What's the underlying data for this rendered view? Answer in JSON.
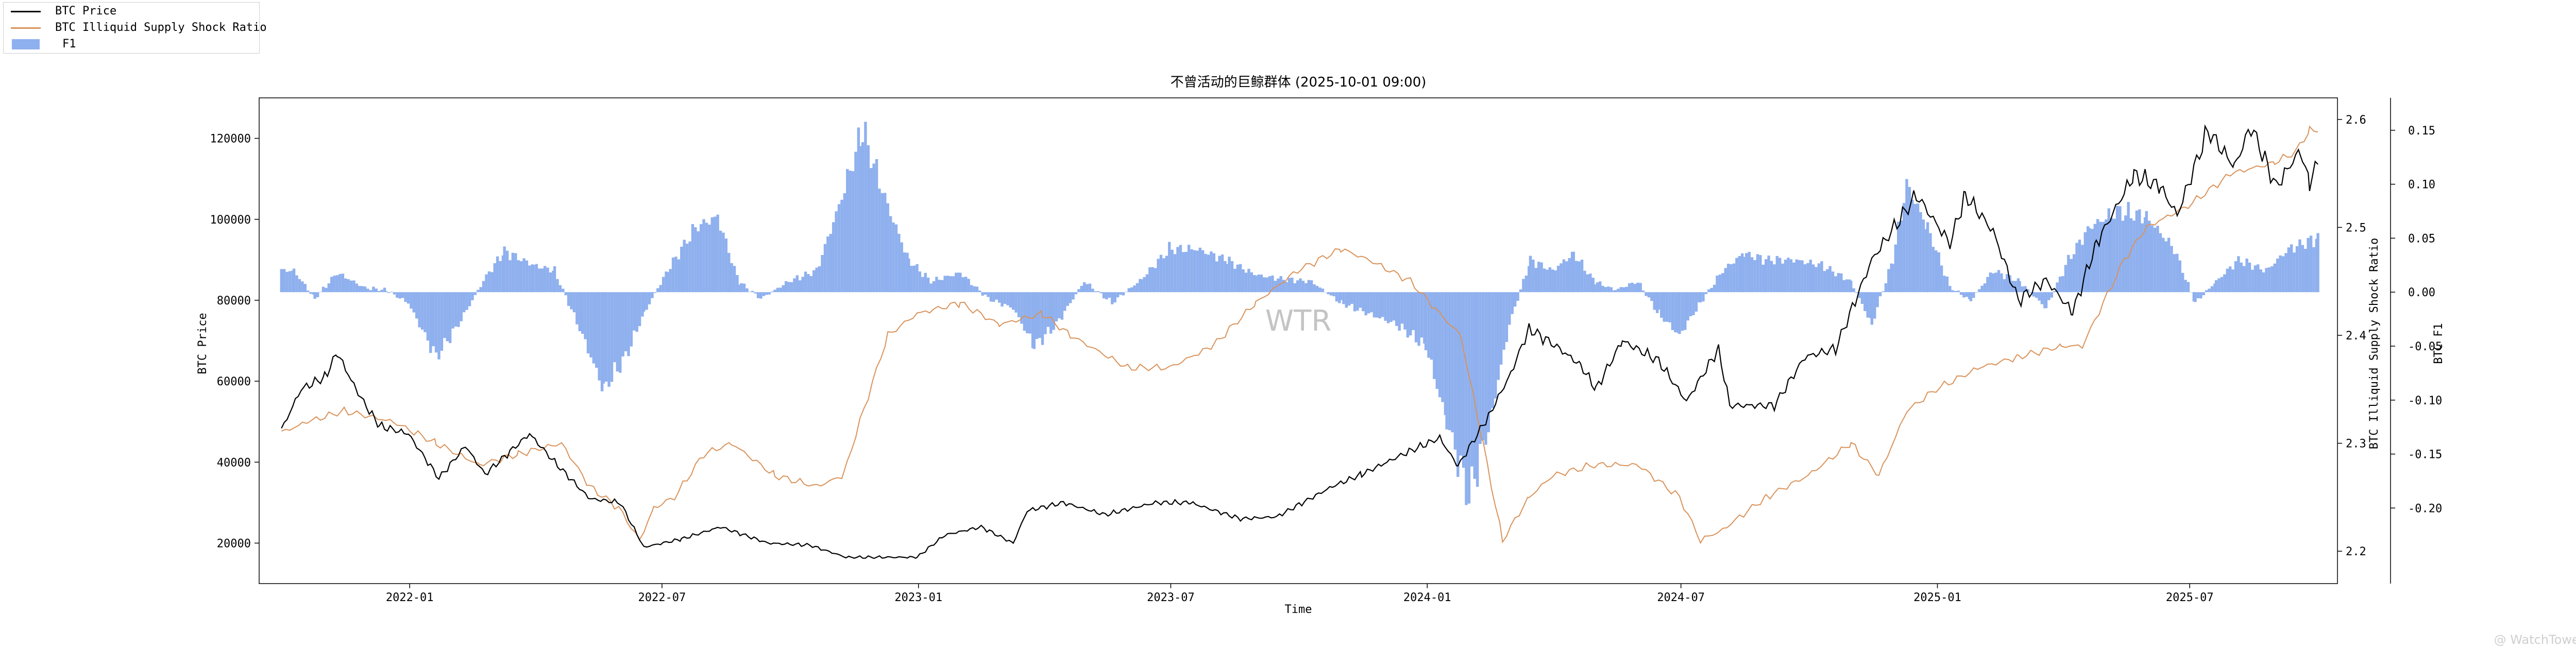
{
  "legend": {
    "price_label": "BTC Price",
    "ratio_label": "BTC Illiquid Supply Shock Ratio",
    "f1_label": "F1"
  },
  "watermark": {
    "center": "WTR",
    "brand": "@ WatchTowerr"
  },
  "colors": {
    "price": "#000000",
    "ratio": "#d9925a",
    "f1": "#8fb0ee"
  },
  "chart_data": {
    "type": "line",
    "title": "不曾活动的巨鲸群体 (2025-10-01 09:00)",
    "xlabel": "Time",
    "x_ticks": [
      "2022-01",
      "2022-07",
      "2023-01",
      "2023-07",
      "2024-01",
      "2024-07",
      "2025-01",
      "2025-07"
    ],
    "x_range": [
      "2021-09-15",
      "2025-10-15"
    ],
    "axes": {
      "price": {
        "label": "BTC Price",
        "range": [
          10000,
          130000
        ],
        "ticks": [
          "20000",
          "40000",
          "60000",
          "80000",
          "100000",
          "120000"
        ]
      },
      "ratio": {
        "label": "BTC Illiquid Supply Shock Ratio",
        "range": [
          2.17,
          2.62
        ],
        "ticks": [
          "2.2",
          "2.3",
          "2.4",
          "2.5",
          "2.6"
        ]
      },
      "f1": {
        "label": "BTC F1",
        "range": [
          -0.27,
          0.18
        ],
        "ticks": [
          "-0.20",
          "-0.15",
          "-0.10",
          "-0.05",
          "0.00",
          "0.05",
          "0.10",
          "0.15"
        ]
      }
    },
    "series": [
      {
        "name": "BTC Price",
        "axis": "price",
        "style": "line",
        "points": [
          [
            "2021-10-01",
            48000
          ],
          [
            "2021-10-15",
            58000
          ],
          [
            "2021-11-01",
            61000
          ],
          [
            "2021-11-10",
            67000
          ],
          [
            "2021-11-25",
            57000
          ],
          [
            "2021-12-10",
            49000
          ],
          [
            "2021-12-31",
            47000
          ],
          [
            "2022-01-22",
            36000
          ],
          [
            "2022-02-10",
            44000
          ],
          [
            "2022-02-24",
            37000
          ],
          [
            "2022-03-28",
            47000
          ],
          [
            "2022-04-15",
            40000
          ],
          [
            "2022-05-10",
            31000
          ],
          [
            "2022-06-01",
            30000
          ],
          [
            "2022-06-18",
            19000
          ],
          [
            "2022-07-15",
            21000
          ],
          [
            "2022-08-12",
            24000
          ],
          [
            "2022-09-15",
            20000
          ],
          [
            "2022-10-15",
            19500
          ],
          [
            "2022-11-10",
            16500
          ],
          [
            "2022-12-31",
            16500
          ],
          [
            "2023-01-20",
            22000
          ],
          [
            "2023-02-15",
            24000
          ],
          [
            "2023-03-10",
            20000
          ],
          [
            "2023-03-20",
            28000
          ],
          [
            "2023-04-15",
            30000
          ],
          [
            "2023-05-15",
            27000
          ],
          [
            "2023-06-20",
            30000
          ],
          [
            "2023-07-15",
            30000
          ],
          [
            "2023-08-20",
            26000
          ],
          [
            "2023-09-15",
            26500
          ],
          [
            "2023-10-25",
            34000
          ],
          [
            "2023-11-15",
            37000
          ],
          [
            "2023-12-15",
            42000
          ],
          [
            "2024-01-10",
            46000
          ],
          [
            "2024-01-23",
            39000
          ],
          [
            "2024-02-15",
            52000
          ],
          [
            "2024-03-01",
            62000
          ],
          [
            "2024-03-14",
            73000
          ],
          [
            "2024-04-01",
            69000
          ],
          [
            "2024-04-20",
            64000
          ],
          [
            "2024-05-01",
            58000
          ],
          [
            "2024-05-20",
            70000
          ],
          [
            "2024-06-15",
            65000
          ],
          [
            "2024-07-05",
            55000
          ],
          [
            "2024-07-28",
            68000
          ],
          [
            "2024-08-05",
            54000
          ],
          [
            "2024-09-06",
            54000
          ],
          [
            "2024-09-28",
            66000
          ],
          [
            "2024-10-20",
            68000
          ],
          [
            "2024-11-15",
            90000
          ],
          [
            "2024-12-05",
            100000
          ],
          [
            "2024-12-17",
            106000
          ],
          [
            "2025-01-10",
            94000
          ],
          [
            "2025-01-21",
            106000
          ],
          [
            "2025-02-10",
            97000
          ],
          [
            "2025-02-28",
            80000
          ],
          [
            "2025-03-20",
            85000
          ],
          [
            "2025-04-08",
            77000
          ],
          [
            "2025-04-25",
            94000
          ],
          [
            "2025-05-22",
            111000
          ],
          [
            "2025-06-10",
            108000
          ],
          [
            "2025-06-22",
            101000
          ],
          [
            "2025-07-14",
            122000
          ],
          [
            "2025-08-02",
            113000
          ],
          [
            "2025-08-14",
            123000
          ],
          [
            "2025-09-01",
            108000
          ],
          [
            "2025-09-18",
            117000
          ],
          [
            "2025-09-25",
            109000
          ],
          [
            "2025-10-01",
            114000
          ]
        ]
      },
      {
        "name": "BTC Illiquid Supply Shock Ratio",
        "axis": "ratio",
        "style": "line",
        "points": [
          [
            "2021-10-01",
            2.31
          ],
          [
            "2021-10-20",
            2.32
          ],
          [
            "2021-11-15",
            2.33
          ],
          [
            "2021-12-20",
            2.32
          ],
          [
            "2022-01-20",
            2.3
          ],
          [
            "2022-02-20",
            2.28
          ],
          [
            "2022-03-20",
            2.29
          ],
          [
            "2022-04-20",
            2.3
          ],
          [
            "2022-05-10",
            2.26
          ],
          [
            "2022-05-31",
            2.24
          ],
          [
            "2022-06-15",
            2.21
          ],
          [
            "2022-06-25",
            2.24
          ],
          [
            "2022-07-10",
            2.25
          ],
          [
            "2022-07-31",
            2.29
          ],
          [
            "2022-08-20",
            2.3
          ],
          [
            "2022-09-20",
            2.27
          ],
          [
            "2022-10-20",
            2.26
          ],
          [
            "2022-11-08",
            2.27
          ],
          [
            "2022-11-20",
            2.32
          ],
          [
            "2022-12-10",
            2.4
          ],
          [
            "2022-12-31",
            2.42
          ],
          [
            "2023-01-31",
            2.43
          ],
          [
            "2023-02-28",
            2.41
          ],
          [
            "2023-03-31",
            2.42
          ],
          [
            "2023-04-20",
            2.4
          ],
          [
            "2023-05-31",
            2.37
          ],
          [
            "2023-06-30",
            2.37
          ],
          [
            "2023-07-31",
            2.39
          ],
          [
            "2023-08-31",
            2.43
          ],
          [
            "2023-09-30",
            2.46
          ],
          [
            "2023-10-31",
            2.48
          ],
          [
            "2023-11-20",
            2.47
          ],
          [
            "2023-12-20",
            2.45
          ],
          [
            "2024-01-10",
            2.42
          ],
          [
            "2024-01-25",
            2.4
          ],
          [
            "2024-02-10",
            2.3
          ],
          [
            "2024-02-24",
            2.21
          ],
          [
            "2024-03-14",
            2.25
          ],
          [
            "2024-03-31",
            2.27
          ],
          [
            "2024-04-30",
            2.28
          ],
          [
            "2024-05-31",
            2.28
          ],
          [
            "2024-06-30",
            2.25
          ],
          [
            "2024-07-15",
            2.21
          ],
          [
            "2024-07-31",
            2.22
          ],
          [
            "2024-08-31",
            2.25
          ],
          [
            "2024-09-30",
            2.27
          ],
          [
            "2024-10-31",
            2.3
          ],
          [
            "2024-11-20",
            2.27
          ],
          [
            "2024-12-10",
            2.33
          ],
          [
            "2024-12-31",
            2.35
          ],
          [
            "2025-01-31",
            2.37
          ],
          [
            "2025-02-28",
            2.38
          ],
          [
            "2025-03-31",
            2.39
          ],
          [
            "2025-04-15",
            2.39
          ],
          [
            "2025-04-30",
            2.43
          ],
          [
            "2025-05-15",
            2.47
          ],
          [
            "2025-05-31",
            2.5
          ],
          [
            "2025-06-30",
            2.52
          ],
          [
            "2025-07-31",
            2.55
          ],
          [
            "2025-08-31",
            2.56
          ],
          [
            "2025-09-15",
            2.57
          ],
          [
            "2025-09-25",
            2.59
          ],
          [
            "2025-10-01",
            2.59
          ]
        ]
      },
      {
        "name": "F1",
        "axis": "f1",
        "style": "bar",
        "points": [
          [
            "2021-10-01",
            0.02
          ],
          [
            "2021-10-10",
            0.02
          ],
          [
            "2021-10-25",
            -0.006
          ],
          [
            "2021-11-10",
            0.018
          ],
          [
            "2021-11-30",
            0.004
          ],
          [
            "2021-12-15",
            0.002
          ],
          [
            "2021-12-31",
            -0.01
          ],
          [
            "2022-01-20",
            -0.06
          ],
          [
            "2022-02-05",
            -0.03
          ],
          [
            "2022-02-25",
            0.015
          ],
          [
            "2022-03-10",
            0.038
          ],
          [
            "2022-03-31",
            0.025
          ],
          [
            "2022-04-15",
            0.02
          ],
          [
            "2022-04-25",
            -0.01
          ],
          [
            "2022-05-05",
            -0.04
          ],
          [
            "2022-05-20",
            -0.09
          ],
          [
            "2022-06-05",
            -0.06
          ],
          [
            "2022-06-18",
            -0.02
          ],
          [
            "2022-07-05",
            0.02
          ],
          [
            "2022-07-25",
            0.06
          ],
          [
            "2022-08-10",
            0.07
          ],
          [
            "2022-08-25",
            0.01
          ],
          [
            "2022-09-10",
            -0.006
          ],
          [
            "2022-09-30",
            0.01
          ],
          [
            "2022-10-20",
            0.02
          ],
          [
            "2022-11-05",
            0.08
          ],
          [
            "2022-11-22",
            0.15
          ],
          [
            "2022-12-10",
            0.08
          ],
          [
            "2022-12-25",
            0.03
          ],
          [
            "2023-01-10",
            0.01
          ],
          [
            "2023-01-31",
            0.018
          ],
          [
            "2023-02-20",
            -0.006
          ],
          [
            "2023-03-10",
            -0.015
          ],
          [
            "2023-03-25",
            -0.05
          ],
          [
            "2023-04-10",
            -0.03
          ],
          [
            "2023-04-30",
            0.01
          ],
          [
            "2023-05-20",
            -0.01
          ],
          [
            "2023-06-10",
            0.012
          ],
          [
            "2023-06-30",
            0.04
          ],
          [
            "2023-07-20",
            0.04
          ],
          [
            "2023-08-10",
            0.03
          ],
          [
            "2023-08-31",
            0.016
          ],
          [
            "2023-09-20",
            0.012
          ],
          [
            "2023-10-10",
            0.01
          ],
          [
            "2023-10-31",
            -0.01
          ],
          [
            "2023-11-20",
            -0.02
          ],
          [
            "2023-12-10",
            -0.03
          ],
          [
            "2023-12-31",
            -0.05
          ],
          [
            "2024-01-15",
            -0.12
          ],
          [
            "2024-01-31",
            -0.19
          ],
          [
            "2024-02-15",
            -0.12
          ],
          [
            "2024-02-29",
            -0.03
          ],
          [
            "2024-03-15",
            0.03
          ],
          [
            "2024-03-31",
            0.02
          ],
          [
            "2024-04-15",
            0.036
          ],
          [
            "2024-04-30",
            0.01
          ],
          [
            "2024-05-15",
            0.002
          ],
          [
            "2024-05-31",
            0.01
          ],
          [
            "2024-06-15",
            -0.02
          ],
          [
            "2024-06-30",
            -0.04
          ],
          [
            "2024-07-15",
            -0.01
          ],
          [
            "2024-07-31",
            0.02
          ],
          [
            "2024-08-15",
            0.036
          ],
          [
            "2024-08-31",
            0.03
          ],
          [
            "2024-09-20",
            0.03
          ],
          [
            "2024-10-10",
            0.025
          ],
          [
            "2024-10-31",
            0.01
          ],
          [
            "2024-11-15",
            -0.03
          ],
          [
            "2024-11-30",
            0.03
          ],
          [
            "2024-12-10",
            0.1
          ],
          [
            "2024-12-25",
            0.06
          ],
          [
            "2025-01-10",
            0.005
          ],
          [
            "2025-01-25",
            -0.008
          ],
          [
            "2025-02-10",
            0.02
          ],
          [
            "2025-03-01",
            0.01
          ],
          [
            "2025-03-20",
            -0.015
          ],
          [
            "2025-04-05",
            0.03
          ],
          [
            "2025-04-20",
            0.06
          ],
          [
            "2025-05-10",
            0.075
          ],
          [
            "2025-05-31",
            0.07
          ],
          [
            "2025-06-20",
            0.04
          ],
          [
            "2025-07-05",
            -0.01
          ],
          [
            "2025-07-20",
            0.01
          ],
          [
            "2025-08-05",
            0.03
          ],
          [
            "2025-08-25",
            0.02
          ],
          [
            "2025-09-10",
            0.04
          ],
          [
            "2025-10-01",
            0.05
          ]
        ]
      }
    ]
  }
}
